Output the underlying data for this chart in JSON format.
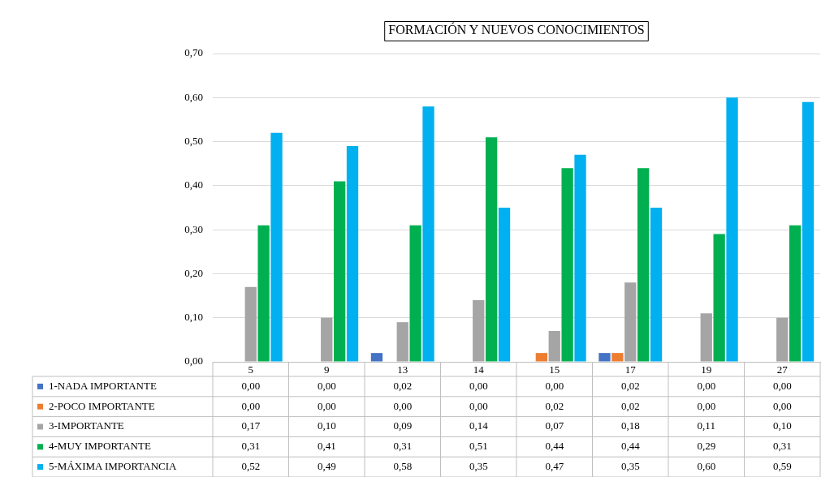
{
  "chart_data": {
    "type": "bar",
    "title": "FORMACIÓN Y NUEVOS CONOCIMIENTOS",
    "categories": [
      "5",
      "9",
      "13",
      "14",
      "15",
      "17",
      "19",
      "27"
    ],
    "series": [
      {
        "name": "1-NADA IMPORTANTE",
        "color": "#4472c4",
        "values": [
          0,
          0,
          0.02,
          0,
          0,
          0.02,
          0,
          0
        ],
        "value_labels": [
          "0,00",
          "0,00",
          "0,02",
          "0,00",
          "0,00",
          "0,02",
          "0,00",
          "0,00"
        ]
      },
      {
        "name": "2-POCO IMPORTANTE",
        "color": "#ed7d31",
        "values": [
          0,
          0,
          0,
          0,
          0.02,
          0.02,
          0,
          0
        ],
        "value_labels": [
          "0,00",
          "0,00",
          "0,00",
          "0,00",
          "0,02",
          "0,02",
          "0,00",
          "0,00"
        ]
      },
      {
        "name": "3-IMPORTANTE",
        "color": "#a5a5a5",
        "values": [
          0.17,
          0.1,
          0.09,
          0.14,
          0.07,
          0.18,
          0.11,
          0.1
        ],
        "value_labels": [
          "0,17",
          "0,10",
          "0,09",
          "0,14",
          "0,07",
          "0,18",
          "0,11",
          "0,10"
        ]
      },
      {
        "name": "4-MUY IMPORTANTE",
        "color": "#00b050",
        "values": [
          0.31,
          0.41,
          0.31,
          0.51,
          0.44,
          0.44,
          0.29,
          0.31
        ],
        "value_labels": [
          "0,31",
          "0,41",
          "0,31",
          "0,51",
          "0,44",
          "0,44",
          "0,29",
          "0,31"
        ]
      },
      {
        "name": "5-MÁXIMA IMPORTANCIA",
        "color": "#00b0f0",
        "values": [
          0.52,
          0.49,
          0.58,
          0.35,
          0.47,
          0.35,
          0.6,
          0.59
        ],
        "value_labels": [
          "0,52",
          "0,49",
          "0,58",
          "0,35",
          "0,47",
          "0,35",
          "0,60",
          "0,59"
        ]
      }
    ],
    "ylim": [
      0,
      0.7
    ],
    "yticks": [
      {
        "value": 0,
        "label": "0,00"
      },
      {
        "value": 0.1,
        "label": "0,10"
      },
      {
        "value": 0.2,
        "label": "0,20"
      },
      {
        "value": 0.3,
        "label": "0,30"
      },
      {
        "value": 0.4,
        "label": "0,40"
      },
      {
        "value": 0.5,
        "label": "0,50"
      },
      {
        "value": 0.6,
        "label": "0,60"
      },
      {
        "value": 0.7,
        "label": "0,70"
      }
    ],
    "grid": "y",
    "legend": "bottom"
  }
}
